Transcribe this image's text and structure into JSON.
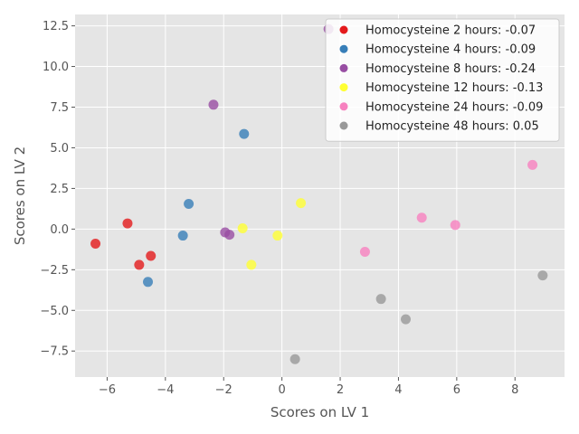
{
  "chart_data": {
    "type": "scatter",
    "xlabel": "Scores on LV 1",
    "ylabel": "Scores on LV 2",
    "xlim": [
      -7.1,
      9.7
    ],
    "ylim": [
      -9.1,
      13.2
    ],
    "xticks": [
      -6,
      -4,
      -2,
      0,
      2,
      4,
      6,
      8
    ],
    "yticks": [
      -7.5,
      -5.0,
      -2.5,
      0.0,
      2.5,
      5.0,
      7.5,
      10.0,
      12.5
    ],
    "xtick_labels": [
      "−6",
      "−4",
      "−2",
      "0",
      "2",
      "4",
      "6",
      "8"
    ],
    "ytick_labels": [
      "−7.5",
      "−5.0",
      "−2.5",
      "0.0",
      "2.5",
      "5.0",
      "7.5",
      "10.0",
      "12.5"
    ],
    "grid": true,
    "legend_position": "top-right",
    "series": [
      {
        "name": "Homocysteine 2 hours: -0.07",
        "color": "#e41a1c",
        "points": [
          [
            -6.4,
            -0.9
          ],
          [
            -5.3,
            0.35
          ],
          [
            -4.9,
            -2.2
          ],
          [
            -4.5,
            -1.65
          ]
        ]
      },
      {
        "name": "Homocysteine 4 hours: -0.09",
        "color": "#377eb8",
        "points": [
          [
            -3.2,
            1.55
          ],
          [
            -3.4,
            -0.4
          ],
          [
            -4.6,
            -3.25
          ],
          [
            -1.3,
            5.85
          ]
        ]
      },
      {
        "name": "Homocysteine 8 hours: -0.24",
        "color": "#984ea3",
        "points": [
          [
            -2.35,
            7.65
          ],
          [
            -1.95,
            -0.2
          ],
          [
            -1.8,
            -0.35
          ],
          [
            1.6,
            12.3
          ]
        ]
      },
      {
        "name": "Homocysteine 12 hours: -0.13",
        "color": "#ffff33",
        "points": [
          [
            -1.35,
            0.05
          ],
          [
            -1.05,
            -2.2
          ],
          [
            -0.15,
            -0.4
          ],
          [
            0.65,
            1.6
          ]
        ]
      },
      {
        "name": "Homocysteine 24 hours: -0.09",
        "color": "#f781bf",
        "points": [
          [
            2.85,
            -1.4
          ],
          [
            4.8,
            0.7
          ],
          [
            5.95,
            0.25
          ],
          [
            8.6,
            3.95
          ]
        ]
      },
      {
        "name": "Homocysteine 48 hours: 0.05",
        "color": "#999999",
        "points": [
          [
            0.45,
            -8.0
          ],
          [
            3.4,
            -4.3
          ],
          [
            4.25,
            -5.55
          ],
          [
            8.95,
            -2.85
          ]
        ]
      }
    ]
  },
  "style": {
    "plot_background": "#e5e5e5",
    "grid_color": "#ffffff",
    "legend_background": "#ffffff",
    "legend_border": "#cccccc"
  }
}
